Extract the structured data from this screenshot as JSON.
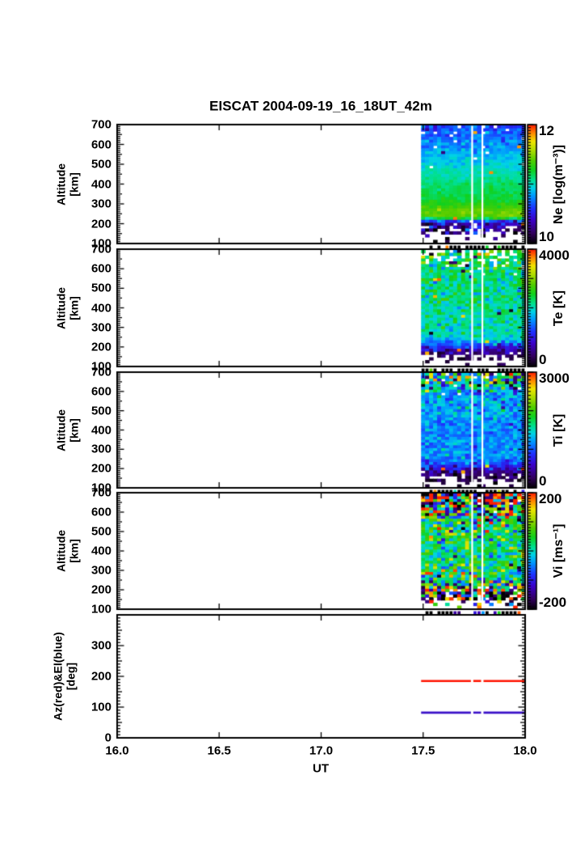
{
  "title": "EISCAT 2004-09-19_16_18UT_42m",
  "xlabel": "UT",
  "seed": 20040919,
  "axis_color": "#000000",
  "background": "#ffffff",
  "x_axis": {
    "lim": [
      16.0,
      18.0
    ],
    "tick_values": [
      16.0,
      16.5,
      17.0,
      17.5,
      18.0
    ],
    "tick_labels": [
      "16.0",
      "16.5",
      "17.0",
      "17.5",
      "18.0"
    ]
  },
  "colormap": [
    [
      0.0,
      "#000000"
    ],
    [
      0.09,
      "#33005e"
    ],
    [
      0.2,
      "#3c00c8"
    ],
    [
      0.3,
      "#1e32ff"
    ],
    [
      0.4,
      "#0096ff"
    ],
    [
      0.47,
      "#00d2e6"
    ],
    [
      0.54,
      "#00e08c"
    ],
    [
      0.62,
      "#11d11e"
    ],
    [
      0.7,
      "#52cd00"
    ],
    [
      0.78,
      "#a8db00"
    ],
    [
      0.86,
      "#f0e400"
    ],
    [
      0.93,
      "#ff8a00"
    ],
    [
      1.0,
      "#ff1e00"
    ]
  ],
  "data_window_ut": [
    17.49,
    18.0
  ],
  "gap_lines_ut": [
    17.74,
    17.79
  ],
  "chart_data": [
    {
      "type": "heatmap",
      "name": "Ne",
      "ylabel": "Altitude\n[km]",
      "ylim": [
        100,
        700
      ],
      "yticks": [
        100,
        200,
        300,
        400,
        500,
        600,
        700
      ],
      "colorbar": {
        "label": "Ne [log(m⁻³)]",
        "min": 10,
        "max": 12,
        "max_label": "12",
        "min_label": "10",
        "major_step": 1,
        "minor_step": 0.05
      },
      "strip": {
        "p_black": 0.72,
        "p_color": 0.12
      },
      "profile": [
        [
          700,
          10.65,
          0.1,
          0.1,
          0.02
        ],
        [
          640,
          10.72,
          0.09,
          0.06,
          0.01
        ],
        [
          580,
          10.82,
          0.08,
          0.04,
          0.005
        ],
        [
          520,
          10.92,
          0.06,
          0.01,
          0.003
        ],
        [
          460,
          11.02,
          0.05,
          0,
          0.003
        ],
        [
          400,
          11.12,
          0.05,
          0,
          0.003
        ],
        [
          330,
          11.2,
          0.04,
          0,
          0.003
        ],
        [
          295,
          11.3,
          0.04,
          0,
          0.003
        ],
        [
          265,
          11.42,
          0.04,
          0,
          0.003
        ],
        [
          240,
          11.45,
          0.04,
          0,
          0.003
        ],
        [
          222,
          11.15,
          0.1,
          0,
          0.01
        ],
        [
          208,
          10.55,
          0.18,
          0.05,
          0.02
        ],
        [
          192,
          10.35,
          0.18,
          0.15,
          0.03
        ],
        [
          175,
          10.25,
          0.2,
          0.25,
          0.03
        ],
        [
          158,
          10.2,
          0.25,
          0.5,
          0.03
        ],
        [
          140,
          10.25,
          0.3,
          0.72,
          0.03
        ],
        [
          120,
          10.25,
          0.3,
          0.85,
          0.02
        ],
        [
          100,
          10.25,
          0.3,
          0.9,
          0.02
        ]
      ]
    },
    {
      "type": "heatmap",
      "name": "Te",
      "ylabel": "Altitude\n[km]",
      "ylim": [
        100,
        700
      ],
      "yticks": [
        100,
        200,
        300,
        400,
        500,
        600,
        700
      ],
      "colorbar": {
        "label": "Te [K]",
        "min": 0,
        "max": 4000,
        "max_label": "4000",
        "min_label": "0",
        "major_step": 1000,
        "minor_step": 100
      },
      "strip": {
        "p_black": 0.72,
        "p_color": 0.12
      },
      "profile": [
        [
          700,
          2300,
          520,
          0.55,
          0.06
        ],
        [
          660,
          2300,
          420,
          0.35,
          0.05
        ],
        [
          620,
          2250,
          360,
          0.18,
          0.04
        ],
        [
          580,
          2250,
          300,
          0.07,
          0.02
        ],
        [
          540,
          2200,
          280,
          0.02,
          0.01
        ],
        [
          480,
          2150,
          260,
          0,
          0.006
        ],
        [
          420,
          2100,
          250,
          0,
          0.006
        ],
        [
          360,
          2100,
          250,
          0,
          0.006
        ],
        [
          300,
          2050,
          230,
          0,
          0.006
        ],
        [
          260,
          1950,
          210,
          0,
          0.006
        ],
        [
          230,
          1800,
          200,
          0,
          0.006
        ],
        [
          210,
          1400,
          260,
          0,
          0.008
        ],
        [
          195,
          1000,
          260,
          0.03,
          0.008
        ],
        [
          180,
          700,
          220,
          0.08,
          0.008
        ],
        [
          165,
          500,
          200,
          0.2,
          0.008
        ],
        [
          150,
          380,
          160,
          0.45,
          0.008
        ],
        [
          135,
          320,
          150,
          0.7,
          0.005
        ],
        [
          100,
          320,
          150,
          0.88,
          0.005
        ]
      ]
    },
    {
      "type": "heatmap",
      "name": "Ti",
      "ylabel": "Altitude\n[km]",
      "ylim": [
        100,
        700
      ],
      "yticks": [
        100,
        200,
        300,
        400,
        500,
        600,
        700
      ],
      "colorbar": {
        "label": "Ti [K]",
        "min": 0,
        "max": 3000,
        "max_label": "3000",
        "min_label": "0",
        "major_step": 1000,
        "minor_step": 100
      },
      "strip": {
        "p_black": 0.7,
        "p_color": 0.14
      },
      "profile": [
        [
          700,
          1500,
          900,
          0.1,
          0.25
        ],
        [
          670,
          1500,
          700,
          0.08,
          0.18
        ],
        [
          640,
          1400,
          520,
          0.05,
          0.12
        ],
        [
          610,
          1320,
          340,
          0.02,
          0.06
        ],
        [
          560,
          1260,
          220,
          0,
          0.01
        ],
        [
          500,
          1220,
          190,
          0,
          0.006
        ],
        [
          440,
          1180,
          170,
          0,
          0.006
        ],
        [
          380,
          1140,
          160,
          0,
          0.006
        ],
        [
          320,
          1160,
          160,
          0,
          0.006
        ],
        [
          270,
          1200,
          160,
          0,
          0.006
        ],
        [
          240,
          1100,
          160,
          0,
          0.006
        ],
        [
          215,
          900,
          210,
          0,
          0.01
        ],
        [
          195,
          620,
          210,
          0.03,
          0.02
        ],
        [
          178,
          420,
          160,
          0.1,
          0.015
        ],
        [
          160,
          260,
          130,
          0.35,
          0.012
        ],
        [
          142,
          190,
          110,
          0.6,
          0.012
        ],
        [
          120,
          190,
          110,
          0.8,
          0.01
        ],
        [
          100,
          190,
          110,
          0.88,
          0.01
        ]
      ]
    },
    {
      "type": "heatmap",
      "name": "Vi",
      "ylabel": "Altitude\n[km]",
      "ylim": [
        100,
        700
      ],
      "yticks": [
        100,
        200,
        300,
        400,
        500,
        600,
        700
      ],
      "colorbar": {
        "label": "Vi [ms⁻¹]",
        "min": -200,
        "max": 200,
        "max_label": "200",
        "min_label": "-200",
        "major_step": 100,
        "minor_step": 10
      },
      "strip": {
        "p_black": 0.55,
        "p_color": 0.3
      },
      "profile": [
        [
          700,
          0,
          290,
          0.05,
          0.3
        ],
        [
          670,
          0,
          230,
          0.04,
          0.25
        ],
        [
          640,
          20,
          170,
          0.02,
          0.18
        ],
        [
          610,
          25,
          115,
          0.01,
          0.1
        ],
        [
          570,
          30,
          75,
          0,
          0.05
        ],
        [
          520,
          30,
          58,
          0,
          0.03
        ],
        [
          460,
          30,
          52,
          0,
          0.022
        ],
        [
          400,
          28,
          48,
          0,
          0.022
        ],
        [
          340,
          28,
          48,
          0,
          0.022
        ],
        [
          290,
          30,
          52,
          0,
          0.028
        ],
        [
          255,
          30,
          65,
          0,
          0.05
        ],
        [
          230,
          20,
          95,
          0.01,
          0.09
        ],
        [
          210,
          0,
          150,
          0.03,
          0.16
        ],
        [
          190,
          0,
          185,
          0.08,
          0.22
        ],
        [
          170,
          0,
          205,
          0.2,
          0.25
        ],
        [
          150,
          0,
          205,
          0.45,
          0.25
        ],
        [
          130,
          0,
          205,
          0.7,
          0.2
        ],
        [
          100,
          0,
          205,
          0.85,
          0.2
        ]
      ]
    },
    {
      "type": "line",
      "name": "AzEl",
      "ylabel": "Az(red)&El(blue)\n[deg]",
      "ylim": [
        0,
        400
      ],
      "yticks": [
        0,
        100,
        200,
        300
      ],
      "series": [
        {
          "name": "Az",
          "color": "#ff1400",
          "value": 185
        },
        {
          "name": "El",
          "color": "#3a10c8",
          "value": 82
        }
      ]
    }
  ]
}
